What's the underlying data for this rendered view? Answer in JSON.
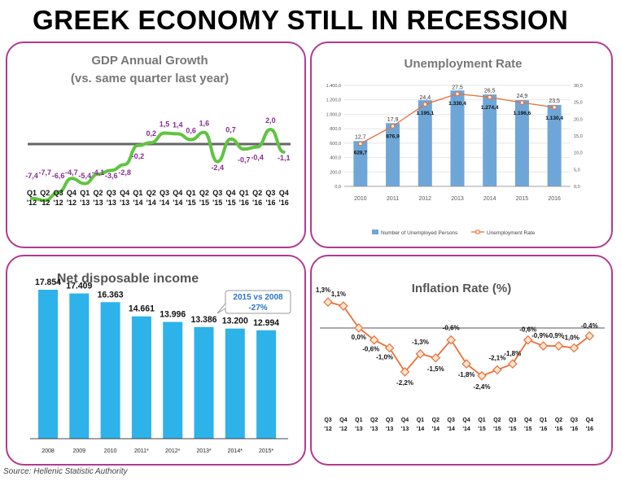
{
  "title": "GREEK ECONOMY STILL IN RECESSION",
  "source": "Source: Hellenic Statistic Authority",
  "colors": {
    "border": "#b23a8f",
    "gdp_line": "#5fc440",
    "gdp_labels": "#8a2c92",
    "bars_blue": "#2eb2ea",
    "unemp_bar": "#6fa6d8",
    "unemp_line": "#e8703a",
    "inflation_line": "#e8703a"
  },
  "gdp": {
    "title_line1": "GDP Annual Growth",
    "title_line2": "(vs. same quarter last year)",
    "quarters": [
      "Q1",
      "Q2",
      "Q3",
      "Q4",
      "Q1",
      "Q2",
      "Q3",
      "Q4",
      "Q1",
      "Q2",
      "Q3",
      "Q4",
      "Q1",
      "Q2",
      "Q3",
      "Q4",
      "Q1",
      "Q2",
      "Q3",
      "Q4"
    ],
    "years": [
      "'12",
      "'12",
      "'12",
      "'12",
      "'13",
      "'13",
      "'13",
      "'13",
      "'14",
      "'14",
      "'14",
      "'14",
      "'15",
      "'15",
      "'15",
      "'15",
      "'16",
      "'16",
      "'16",
      "'16"
    ],
    "labels": [
      "-7,4",
      "-7,7",
      "-6,6",
      "-4,7",
      "-5,4",
      "-4,1",
      "-3,6",
      "-2,8",
      "-0,2",
      "0,2",
      "1,5",
      "1,4",
      "0,6",
      "1,6",
      "-2,4",
      "0,7",
      "-0,7",
      "-0,4",
      "2,0",
      "-1,1"
    ]
  },
  "chart_data": [
    {
      "type": "line",
      "title": "GDP Annual Growth",
      "subtitle": "(vs. same quarter last year)",
      "categories": [
        "Q1 '12",
        "Q2 '12",
        "Q3 '12",
        "Q4 '12",
        "Q1 '13",
        "Q2 '13",
        "Q3 '13",
        "Q4 '13",
        "Q1 '14",
        "Q2 '14",
        "Q3 '14",
        "Q4 '14",
        "Q1 '15",
        "Q2 '15",
        "Q3 '15",
        "Q4 '15",
        "Q1 '16",
        "Q2 '16",
        "Q3 '16",
        "Q4 '16"
      ],
      "values": [
        -7.4,
        -7.7,
        -6.6,
        -4.7,
        -5.4,
        -4.1,
        -3.6,
        -2.8,
        -0.2,
        0.2,
        1.5,
        1.4,
        0.6,
        1.6,
        -2.4,
        0.7,
        -0.7,
        -0.4,
        2.0,
        -1.1
      ],
      "ylim": [
        -9,
        3
      ],
      "grid": false
    },
    {
      "type": "bar",
      "title": "Unemployment Rate",
      "categories": [
        "2010",
        "2011",
        "2012",
        "2013",
        "2014",
        "2015",
        "2016"
      ],
      "series": [
        {
          "name": "Number of Unemployed Persons",
          "values": [
            628.7,
            876.9,
            1195.1,
            1330.4,
            1274.4,
            1196.6,
            1130.4
          ],
          "labels": [
            "628,7",
            "876,9",
            "1.195,1",
            "1.330,4",
            "1.274,4",
            "1.196,6",
            "1.130,4"
          ]
        },
        {
          "name": "Unemployment Rate",
          "values": [
            12.7,
            17.9,
            24.4,
            27.5,
            26.5,
            24.9,
            23.5
          ],
          "labels": [
            "12,7",
            "17,9",
            "24,4",
            "27,5",
            "26,5",
            "24,9",
            "23,5"
          ]
        }
      ],
      "y_left_ticks": [
        "0,0",
        "200,0",
        "400,0",
        "600,0",
        "800,0",
        "1.000,0",
        "1.200,0",
        "1.400,0"
      ],
      "y_right_ticks": [
        "0,0",
        "5,0",
        "10,0",
        "15,0",
        "20,0",
        "25,0",
        "30,0"
      ],
      "ylim_left": [
        0,
        1400
      ],
      "ylim_right": [
        0,
        30
      ],
      "grid": true,
      "legend": "bottom"
    },
    {
      "type": "bar",
      "title": "Net disposable income",
      "categories": [
        "2008",
        "2009",
        "2010",
        "2011*",
        "2012*",
        "2013*",
        "2014*",
        "2015*"
      ],
      "values": [
        17854,
        17409,
        16363,
        14661,
        13996,
        13386,
        13200,
        12994
      ],
      "value_labels": [
        "17.854",
        "17.409",
        "16.363",
        "14.661",
        "13.996",
        "13.386",
        "13.200",
        "12.994"
      ],
      "annotation_line1": "2015 vs 2008",
      "annotation_line2": "-27%",
      "ylim": [
        0,
        20000
      ]
    },
    {
      "type": "line",
      "title": "Inflation Rate (%)",
      "categories": [
        "Q3 '12",
        "Q4 '12",
        "Q1 '13",
        "Q2 '13",
        "Q3 '13",
        "Q4 '13",
        "Q1 '14",
        "Q2 '14",
        "Q3 '14",
        "Q4 '14",
        "Q1 '15",
        "Q2 '15",
        "Q3 '15",
        "Q4 '15",
        "Q1 '16",
        "Q2 '16",
        "Q3 '16",
        "Q4 '16"
      ],
      "quarters": [
        "Q3",
        "Q4",
        "Q1",
        "Q2",
        "Q3",
        "Q4",
        "Q1",
        "Q2",
        "Q3",
        "Q4",
        "Q1",
        "Q2",
        "Q3",
        "Q4",
        "Q1",
        "Q2",
        "Q3",
        "Q4"
      ],
      "years": [
        "'12",
        "'12",
        "'13",
        "'13",
        "'13",
        "'13",
        "'14",
        "'14",
        "'14",
        "'14",
        "'15",
        "'15",
        "'15",
        "'15",
        "'16",
        "'16",
        "'16",
        "'16"
      ],
      "values": [
        1.3,
        1.1,
        0.0,
        -0.6,
        -1.0,
        -2.2,
        -1.3,
        -1.5,
        -0.6,
        -1.8,
        -2.4,
        -2.1,
        -1.8,
        -0.6,
        -0.9,
        -0.9,
        -1.0,
        -0.4
      ],
      "point_labels": [
        "1,3%",
        "1,1%",
        "0,0%",
        "-0,6%",
        "-1,0%",
        "-2,2%",
        "-1,3%",
        "-1,5%",
        "-0,6%",
        "-1,8%",
        "-2,4%",
        "-2,1%",
        "-1,8%",
        "-0,6%",
        "-0,9%",
        "-0,9%",
        "-1,0%",
        "-0,4%"
      ],
      "ylim": [
        -3,
        2
      ]
    }
  ]
}
